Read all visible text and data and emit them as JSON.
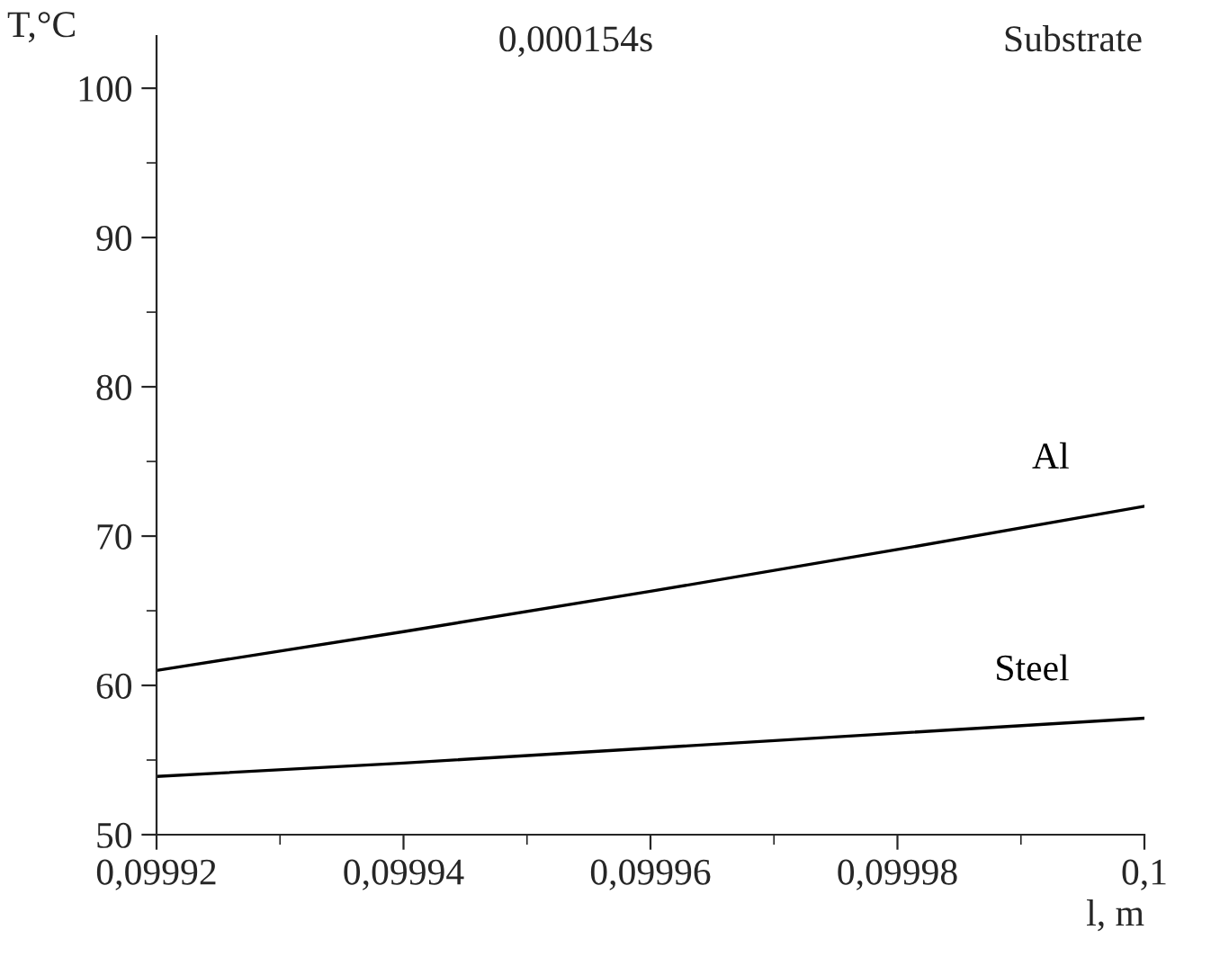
{
  "chart_data": {
    "type": "line",
    "title": "0,000154s",
    "subtitle": "Substrate",
    "xlabel": "l, m",
    "ylabel": "T,°C",
    "x": [
      0.09992,
      0.09994,
      0.09996,
      0.09998,
      0.1
    ],
    "series": [
      {
        "name": "Al",
        "color": "#000000",
        "values": [
          61,
          63.6,
          66.3,
          69.1,
          72
        ]
      },
      {
        "name": "Steel",
        "color": "#000000",
        "values": [
          53.9,
          54.8,
          55.8,
          56.8,
          57.8
        ]
      }
    ],
    "xlim": [
      0.09992,
      0.1
    ],
    "xticks": [
      {
        "value": 0.09992,
        "label": "0,09992"
      },
      {
        "value": 0.09994,
        "label": "0,09994"
      },
      {
        "value": 0.09996,
        "label": "0,09996"
      },
      {
        "value": 0.09998,
        "label": "0,09998"
      },
      {
        "value": 0.1,
        "label": "0,1"
      }
    ],
    "ylim": [
      50,
      103.5
    ],
    "yticks": [
      50,
      60,
      70,
      80,
      90,
      100
    ],
    "grid": false,
    "legend": false,
    "marker": "none",
    "line_style": "solid"
  }
}
